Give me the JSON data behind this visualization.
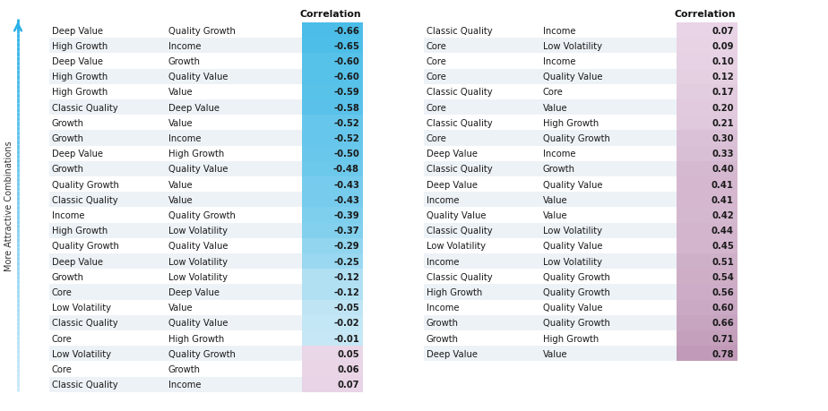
{
  "left_table": {
    "col1": [
      "Deep Value",
      "High Growth",
      "Deep Value",
      "High Growth",
      "High Growth",
      "Classic Quality",
      "Growth",
      "Growth",
      "Deep Value",
      "Growth",
      "Quality Growth",
      "Classic Quality",
      "Income",
      "High Growth",
      "Quality Growth",
      "Deep Value",
      "Growth",
      "Core",
      "Low Volatility",
      "Classic Quality",
      "Core",
      "Low Volatility",
      "Core",
      "Classic Quality"
    ],
    "col2": [
      "Quality Growth",
      "Income",
      "Growth",
      "Quality Value",
      "Value",
      "Deep Value",
      "Value",
      "Income",
      "High Growth",
      "Quality Value",
      "Value",
      "Value",
      "Quality Growth",
      "Low Volatility",
      "Quality Value",
      "Low Volatility",
      "Low Volatility",
      "Deep Value",
      "Value",
      "Quality Value",
      "High Growth",
      "Quality Growth",
      "Growth",
      "Income"
    ],
    "values": [
      -0.66,
      -0.65,
      -0.6,
      -0.6,
      -0.59,
      -0.58,
      -0.52,
      -0.52,
      -0.5,
      -0.48,
      -0.43,
      -0.43,
      -0.39,
      -0.37,
      -0.29,
      -0.25,
      -0.12,
      -0.12,
      -0.05,
      -0.02,
      -0.01,
      0.05,
      0.06,
      0.07
    ]
  },
  "right_table": {
    "col1": [
      "Classic Quality",
      "Core",
      "Core",
      "Core",
      "Classic Quality",
      "Core",
      "Classic Quality",
      "Core",
      "Deep Value",
      "Classic Quality",
      "Deep Value",
      "Income",
      "Quality Value",
      "Classic Quality",
      "Low Volatility",
      "Income",
      "Classic Quality",
      "High Growth",
      "Income",
      "Growth",
      "Growth",
      "Deep Value"
    ],
    "col2": [
      "Income",
      "Low Volatility",
      "Income",
      "Quality Value",
      "Core",
      "Value",
      "High Growth",
      "Quality Growth",
      "Income",
      "Growth",
      "Quality Value",
      "Value",
      "Value",
      "Low Volatility",
      "Quality Value",
      "Low Volatility",
      "Quality Growth",
      "Quality Growth",
      "Quality Value",
      "Quality Growth",
      "High Growth",
      "Value"
    ],
    "values": [
      0.07,
      0.09,
      0.1,
      0.12,
      0.17,
      0.2,
      0.21,
      0.3,
      0.33,
      0.4,
      0.41,
      0.41,
      0.42,
      0.44,
      0.45,
      0.51,
      0.54,
      0.56,
      0.6,
      0.66,
      0.71,
      0.78
    ]
  },
  "header": "Correlation",
  "arrow_label": "More Attractive Combinations",
  "neg_color_strong": "#4bbde8",
  "neg_color_weak": "#c8e8f5",
  "pos_color_strong": "#c09ab8",
  "pos_color_weak": "#ecdaea",
  "row_bg_alt": "#edf2f7",
  "row_bg_main": "#ffffff",
  "text_color": "#1a1a1a",
  "header_color": "#111111",
  "arrow_color_top": "#2ab0e8",
  "arrow_color_bot": "#c8e8f8"
}
